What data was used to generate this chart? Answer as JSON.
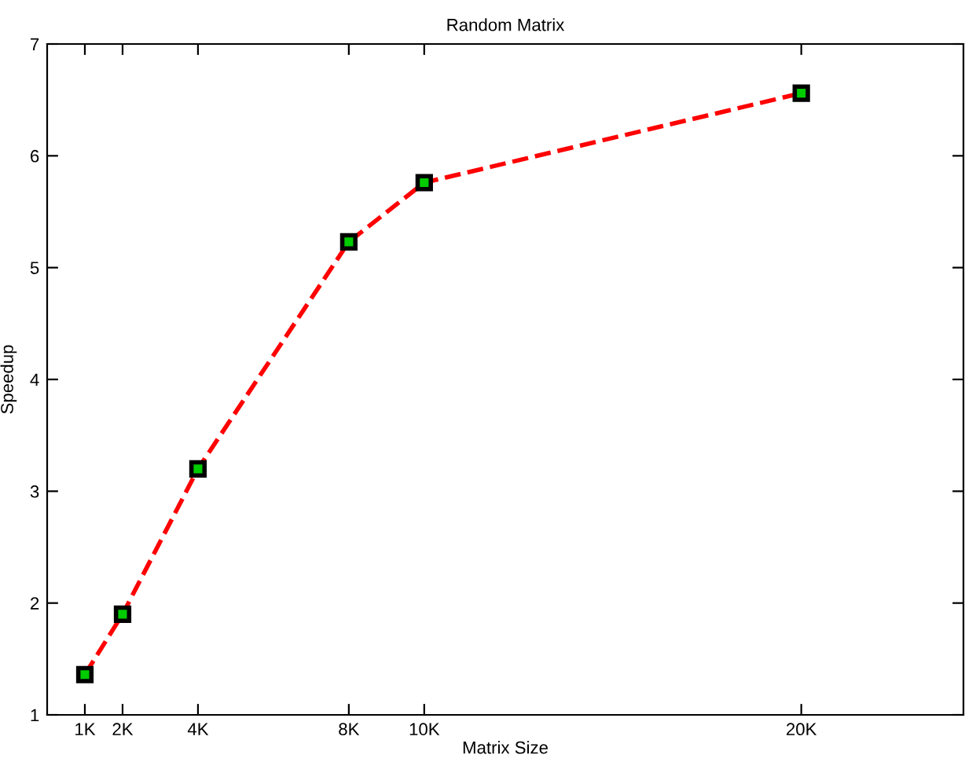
{
  "chart_data": {
    "type": "line",
    "title": "Random Matrix",
    "xlabel": "Matrix Size",
    "ylabel": "Speedup",
    "x": [
      1,
      2,
      4,
      8,
      10,
      20
    ],
    "series": [
      {
        "color": "#ff0000",
        "values": [
          1.36,
          1.9,
          3.2,
          5.23,
          5.76,
          6.56
        ]
      }
    ],
    "xlim": [
      0,
      24.3
    ],
    "xticks": [
      {
        "value": 1,
        "label": "1K"
      },
      {
        "value": 2,
        "label": "2K"
      },
      {
        "value": 4,
        "label": "4K"
      },
      {
        "value": 8,
        "label": "8K"
      },
      {
        "value": 10,
        "label": "10K"
      },
      {
        "value": 20,
        "label": "20K"
      }
    ],
    "ylim": [
      1,
      7
    ],
    "yticks": [
      1,
      2,
      3,
      4,
      5,
      6,
      7
    ],
    "marker": "square",
    "line_style": "dashed",
    "grid": false,
    "legend": false
  }
}
